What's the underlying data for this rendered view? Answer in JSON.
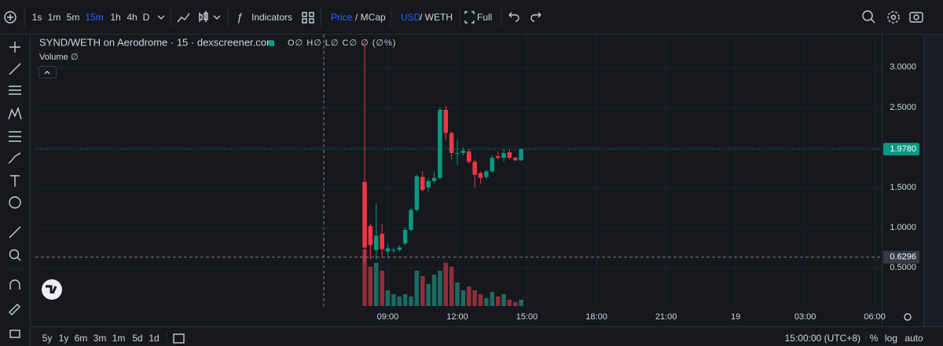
{
  "toolbar": {
    "intervals": [
      "1s",
      "1m",
      "5m",
      "15m",
      "1h",
      "4h",
      "D"
    ],
    "indicators": "Indicators",
    "price": "Price",
    "mcap": "/ MCap",
    "usd": "USD",
    "weth": "/ WETH",
    "full": "Full"
  },
  "legend": {
    "title": "SYND/WETH on Aerodrome · 15 · dexscreener.com",
    "ohlc": "O∅ H∅ L∅ C∅ ∅ (∅%)",
    "volume": "Volume",
    "volume_value": "∅"
  },
  "bottom": {
    "ranges": [
      "5y",
      "1y",
      "6m",
      "3m",
      "1m",
      "5d",
      "1d"
    ],
    "time": "15:00:00 (UTC+8)",
    "percent": "%",
    "log": "log",
    "auto": "auto"
  },
  "chart_data": {
    "type": "candlestick",
    "x": [
      8.0,
      8.25,
      8.5,
      8.75,
      9.0,
      9.25,
      9.5,
      9.75,
      10.0,
      10.25,
      10.5,
      10.75,
      11.0,
      11.25,
      11.5,
      11.75,
      12.0,
      12.25,
      12.5,
      12.75,
      13.0,
      13.25,
      13.5,
      13.75,
      14.0,
      14.25,
      14.5,
      14.75
    ],
    "open": [
      1.57,
      1.02,
      0.72,
      0.92,
      0.7,
      0.71,
      0.72,
      0.8,
      0.97,
      1.22,
      1.63,
      1.5,
      1.58,
      1.62,
      2.47,
      2.18,
      1.92,
      1.93,
      1.95,
      1.82,
      1.68,
      1.63,
      1.7,
      1.89,
      1.87,
      1.94,
      1.87,
      1.84
    ],
    "high": [
      3.3,
      1.05,
      1.3,
      1.05,
      0.8,
      0.75,
      0.78,
      1.0,
      1.25,
      1.66,
      1.7,
      1.62,
      1.7,
      2.5,
      2.52,
      2.2,
      2.1,
      2.0,
      1.98,
      1.85,
      1.7,
      1.72,
      1.9,
      1.95,
      1.98,
      1.98,
      1.88,
      1.99
    ],
    "low": [
      0.55,
      0.6,
      0.6,
      0.62,
      0.62,
      0.68,
      0.7,
      0.78,
      0.95,
      1.2,
      1.45,
      1.45,
      1.55,
      1.6,
      2.1,
      1.85,
      1.78,
      1.9,
      1.8,
      1.5,
      1.55,
      1.6,
      1.68,
      1.85,
      1.82,
      1.85,
      1.83,
      1.83
    ],
    "close": [
      0.75,
      0.78,
      0.9,
      0.73,
      0.74,
      0.72,
      0.75,
      0.97,
      1.22,
      1.64,
      1.47,
      1.58,
      1.62,
      2.47,
      2.18,
      1.93,
      1.93,
      1.96,
      1.82,
      1.66,
      1.62,
      1.7,
      1.87,
      1.87,
      1.93,
      1.87,
      1.84,
      1.978
    ],
    "volume": [
      72,
      50,
      55,
      45,
      20,
      15,
      12,
      15,
      12,
      45,
      38,
      28,
      40,
      45,
      55,
      50,
      30,
      20,
      25,
      20,
      15,
      10,
      18,
      12,
      15,
      8,
      5,
      8
    ],
    "up_color": "#089981",
    "down_color": "#f23645",
    "volume_up_color": "#1d6b60",
    "volume_down_color": "#8e2f3b",
    "xlim": [
      -6.2,
      30.3
    ],
    "xticks": [
      {
        "value": 9,
        "label": "09:00"
      },
      {
        "value": 12,
        "label": "12:00"
      },
      {
        "value": 15,
        "label": "15:00"
      },
      {
        "value": 18,
        "label": "18:00"
      },
      {
        "value": 21,
        "label": "21:00"
      },
      {
        "value": 24,
        "label": "19"
      },
      {
        "value": 27,
        "label": "03:00"
      },
      {
        "value": 30,
        "label": "06:00"
      }
    ],
    "ylim": [
      0,
      3.41
    ],
    "yticks": [
      {
        "value": 0.5,
        "label": "0.5000"
      },
      {
        "value": 1,
        "label": "1.0000"
      },
      {
        "value": 1.5,
        "label": "1.5000"
      },
      {
        "value": 2,
        "label": "2.0000"
      },
      {
        "value": 2.5,
        "label": "2.5000"
      },
      {
        "value": 3,
        "label": "3.0000"
      }
    ],
    "last_price": {
      "value": 1.978,
      "label": "1.9780"
    },
    "crosshair_price": 0.6296,
    "grid": true
  }
}
